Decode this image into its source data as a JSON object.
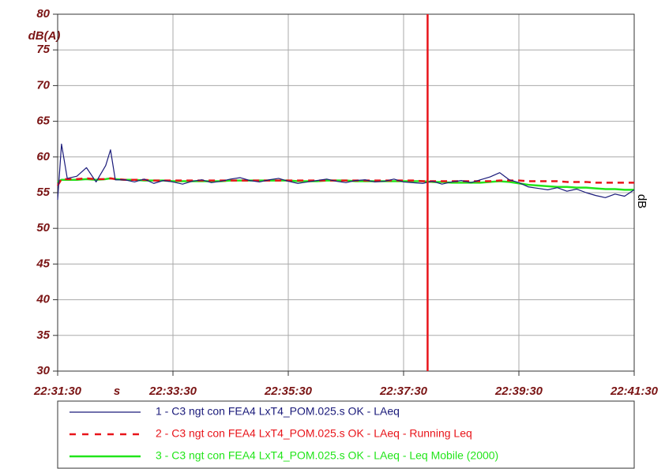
{
  "chart_data": {
    "type": "line",
    "y_unit": "dB(A)",
    "y2_unit": "dB",
    "xlabel": "s",
    "xlim": [
      81090,
      81690
    ],
    "xticks": [
      {
        "value": 81090,
        "label": "22:31:30"
      },
      {
        "value": 81210,
        "label": "22:33:30"
      },
      {
        "value": 81330,
        "label": "22:35:30"
      },
      {
        "value": 81450,
        "label": "22:37:30"
      },
      {
        "value": 81570,
        "label": "22:39:30"
      },
      {
        "value": 81690,
        "label": "22:41:30"
      }
    ],
    "ylim": [
      30,
      80
    ],
    "yticks": [
      30,
      35,
      40,
      45,
      50,
      55,
      60,
      65,
      70,
      75,
      80
    ],
    "grid": true,
    "cursor_x": 81475,
    "cursor_color": "#e8141a",
    "x": [
      81090,
      81094,
      81100,
      81110,
      81120,
      81130,
      81140,
      81145,
      81150,
      81160,
      81170,
      81180,
      81190,
      81200,
      81210,
      81220,
      81230,
      81240,
      81250,
      81260,
      81270,
      81280,
      81290,
      81300,
      81310,
      81320,
      81330,
      81340,
      81350,
      81360,
      81370,
      81380,
      81390,
      81400,
      81410,
      81420,
      81430,
      81440,
      81450,
      81460,
      81470,
      81480,
      81490,
      81500,
      81510,
      81520,
      81530,
      81540,
      81550,
      81560,
      81570,
      81580,
      81590,
      81600,
      81610,
      81620,
      81630,
      81640,
      81650,
      81660,
      81670,
      81680,
      81690
    ],
    "series": [
      {
        "name": "1 - C3 ngt con FEA4 LxT4_POM.025.s OK - LAeq",
        "color": "#1a1a7a",
        "dash": false,
        "width": 1.2,
        "values": [
          54.0,
          61.8,
          57.0,
          57.3,
          58.5,
          56.5,
          58.8,
          61.0,
          56.8,
          56.8,
          56.5,
          56.9,
          56.3,
          56.7,
          56.5,
          56.2,
          56.6,
          56.8,
          56.4,
          56.6,
          56.9,
          57.1,
          56.7,
          56.5,
          56.8,
          57.0,
          56.6,
          56.3,
          56.5,
          56.7,
          56.9,
          56.6,
          56.4,
          56.7,
          56.8,
          56.5,
          56.6,
          56.9,
          56.5,
          56.4,
          56.3,
          56.6,
          56.2,
          56.5,
          56.7,
          56.4,
          56.8,
          57.2,
          57.8,
          56.8,
          56.4,
          55.8,
          55.6,
          55.4,
          55.7,
          55.2,
          55.5,
          55.0,
          54.6,
          54.3,
          54.8,
          54.5,
          55.4
        ]
      },
      {
        "name": "2 - C3 ngt con FEA4 LxT4_POM.025.s OK - LAeq - Running Leq",
        "color": "#e8141a",
        "dash": true,
        "width": 2.5,
        "values": [
          56.0,
          56.9,
          56.9,
          56.9,
          57.0,
          56.9,
          56.9,
          57.0,
          56.9,
          56.8,
          56.8,
          56.8,
          56.7,
          56.7,
          56.7,
          56.7,
          56.7,
          56.7,
          56.7,
          56.7,
          56.7,
          56.7,
          56.7,
          56.7,
          56.7,
          56.7,
          56.7,
          56.7,
          56.7,
          56.7,
          56.7,
          56.7,
          56.7,
          56.7,
          56.7,
          56.7,
          56.7,
          56.7,
          56.7,
          56.7,
          56.6,
          56.6,
          56.6,
          56.6,
          56.6,
          56.6,
          56.6,
          56.6,
          56.7,
          56.7,
          56.7,
          56.6,
          56.6,
          56.6,
          56.6,
          56.5,
          56.5,
          56.5,
          56.4,
          56.4,
          56.4,
          56.4,
          56.4
        ]
      },
      {
        "name": "3 - C3 ngt con FEA4 LxT4_POM.025.s OK - LAeq - Leq Mobile (2000)",
        "color": "#22e51a",
        "dash": false,
        "width": 2.5,
        "values": [
          56.5,
          56.8,
          56.8,
          56.8,
          56.9,
          56.8,
          56.9,
          57.0,
          56.9,
          56.8,
          56.8,
          56.7,
          56.7,
          56.7,
          56.6,
          56.6,
          56.6,
          56.6,
          56.6,
          56.6,
          56.7,
          56.7,
          56.7,
          56.7,
          56.7,
          56.7,
          56.7,
          56.6,
          56.6,
          56.6,
          56.7,
          56.7,
          56.7,
          56.6,
          56.6,
          56.6,
          56.6,
          56.6,
          56.6,
          56.6,
          56.6,
          56.5,
          56.5,
          56.4,
          56.4,
          56.4,
          56.4,
          56.5,
          56.6,
          56.5,
          56.3,
          56.1,
          56.0,
          55.9,
          55.8,
          55.8,
          55.7,
          55.7,
          55.6,
          55.5,
          55.5,
          55.4,
          55.4
        ]
      }
    ]
  }
}
